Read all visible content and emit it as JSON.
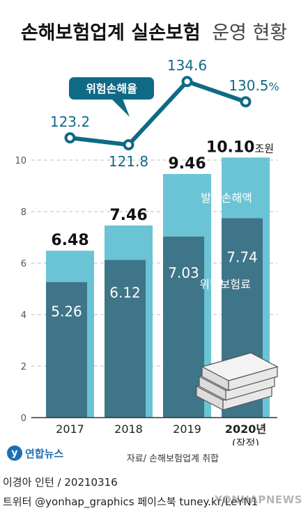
{
  "title_bold": "손해보험업계 실손보험",
  "title_light": "운영 현황",
  "chart_data": {
    "type": "bar",
    "categories": [
      "2017",
      "2018",
      "2019",
      "2020년"
    ],
    "category_sublabels": [
      "",
      "",
      "",
      "(잠정)"
    ],
    "ylim": [
      0,
      10.5
    ],
    "yticks": [
      "0",
      "2",
      "4",
      "6",
      "8",
      "10"
    ],
    "series": [
      {
        "name": "발생손해액",
        "values": [
          6.48,
          7.46,
          9.46,
          10.1
        ],
        "labels": [
          "6.48",
          "7.46",
          "9.46",
          "10.10"
        ],
        "color": "#6bc4d5"
      },
      {
        "name": "위험보험료",
        "values": [
          5.26,
          6.12,
          7.03,
          7.74
        ],
        "labels": [
          "5.26",
          "6.12",
          "7.03",
          "7.74"
        ],
        "color": "#3f7588"
      }
    ],
    "last_total_unit": "조원",
    "line": {
      "name": "위험손해율",
      "values": [
        123.2,
        121.8,
        134.6,
        130.5
      ],
      "labels": [
        "123.2",
        "121.8",
        "134.6",
        "130.5"
      ],
      "last_unit": "%",
      "color": "#0f6a86"
    }
  },
  "credit": {
    "author": "이경아 인턴 / 20210316",
    "social": "트위터 @yonhap_graphics  페이스북 tuney.kr/LeYN1"
  },
  "source": "자료/ 손해보험업계 취합",
  "logo_text": "연합뉴스",
  "watermark": "YONHAPNEWS"
}
